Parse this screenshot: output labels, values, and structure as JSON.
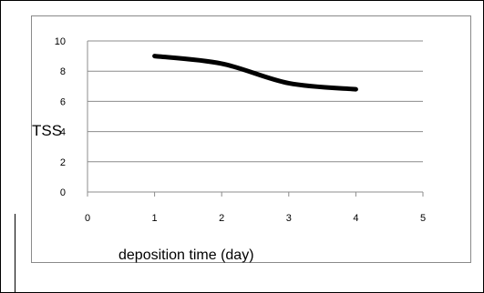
{
  "chart_data": {
    "type": "line",
    "title": "",
    "xlabel": "deposition time  (day)",
    "ylabel": "TSS",
    "x_ticks": [
      "0",
      "1",
      "2",
      "3",
      "4",
      "5"
    ],
    "y_ticks": [
      "0",
      "2",
      "4",
      "6",
      "8",
      "10"
    ],
    "xlim": [
      0,
      5
    ],
    "ylim": [
      0,
      10
    ],
    "grid": "horizontal",
    "legend": "none",
    "series": [
      {
        "x": [
          1,
          2,
          3,
          4
        ],
        "values": [
          9.0,
          8.5,
          7.2,
          6.8
        ],
        "color": "#000000"
      }
    ]
  }
}
